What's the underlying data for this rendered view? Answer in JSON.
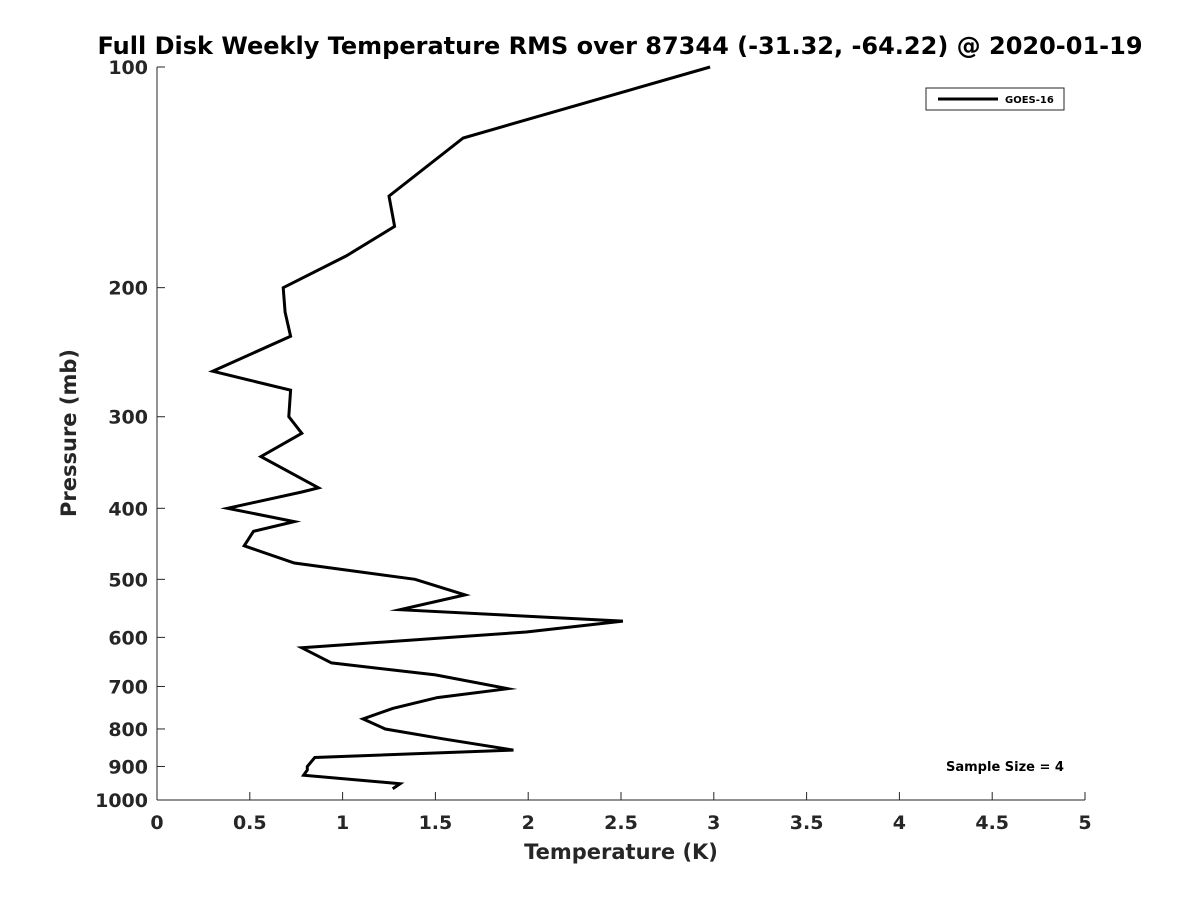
{
  "chart_data": {
    "type": "line",
    "title": "Full Disk Weekly Temperature RMS over 87344 (-31.32, -64.22) @ 2020-01-19",
    "xlabel": "Temperature (K)",
    "ylabel": "Pressure (mb)",
    "xlim": [
      0,
      5
    ],
    "ylim": [
      100,
      1000
    ],
    "y_scale": "log",
    "y_reversed": true,
    "x_ticks": [
      "0",
      "0.5",
      "1",
      "1.5",
      "2",
      "2.5",
      "3",
      "3.5",
      "4",
      "4.5",
      "5"
    ],
    "y_ticks": [
      "100",
      "200",
      "300",
      "400",
      "500",
      "600",
      "700",
      "800",
      "900",
      "1000"
    ],
    "grid": false,
    "legend_position": "top-right",
    "annotation": "Sample Size = 4",
    "series": [
      {
        "name": "GOES-16",
        "color": "#000000",
        "x": [
          2.98,
          1.65,
          1.25,
          1.28,
          1.02,
          0.68,
          0.69,
          0.72,
          0.3,
          0.72,
          0.71,
          0.78,
          0.56,
          0.87,
          0.78,
          0.38,
          0.74,
          0.52,
          0.47,
          0.74,
          1.39,
          1.66,
          1.31,
          2.51,
          1.99,
          0.78,
          0.94,
          1.5,
          1.89,
          1.51,
          1.27,
          1.11,
          1.23,
          1.54,
          1.92,
          0.85,
          0.81,
          0.81,
          0.79,
          1.31,
          1.27
        ],
        "y": [
          100,
          125,
          150,
          165,
          181,
          200,
          216,
          233,
          260,
          276,
          300,
          316,
          340,
          375,
          380,
          400,
          417,
          430,
          450,
          475,
          500,
          525,
          550,
          570,
          590,
          620,
          650,
          675,
          705,
          725,
          750,
          775,
          800,
          825,
          855,
          875,
          900,
          910,
          925,
          950,
          965
        ]
      }
    ]
  }
}
